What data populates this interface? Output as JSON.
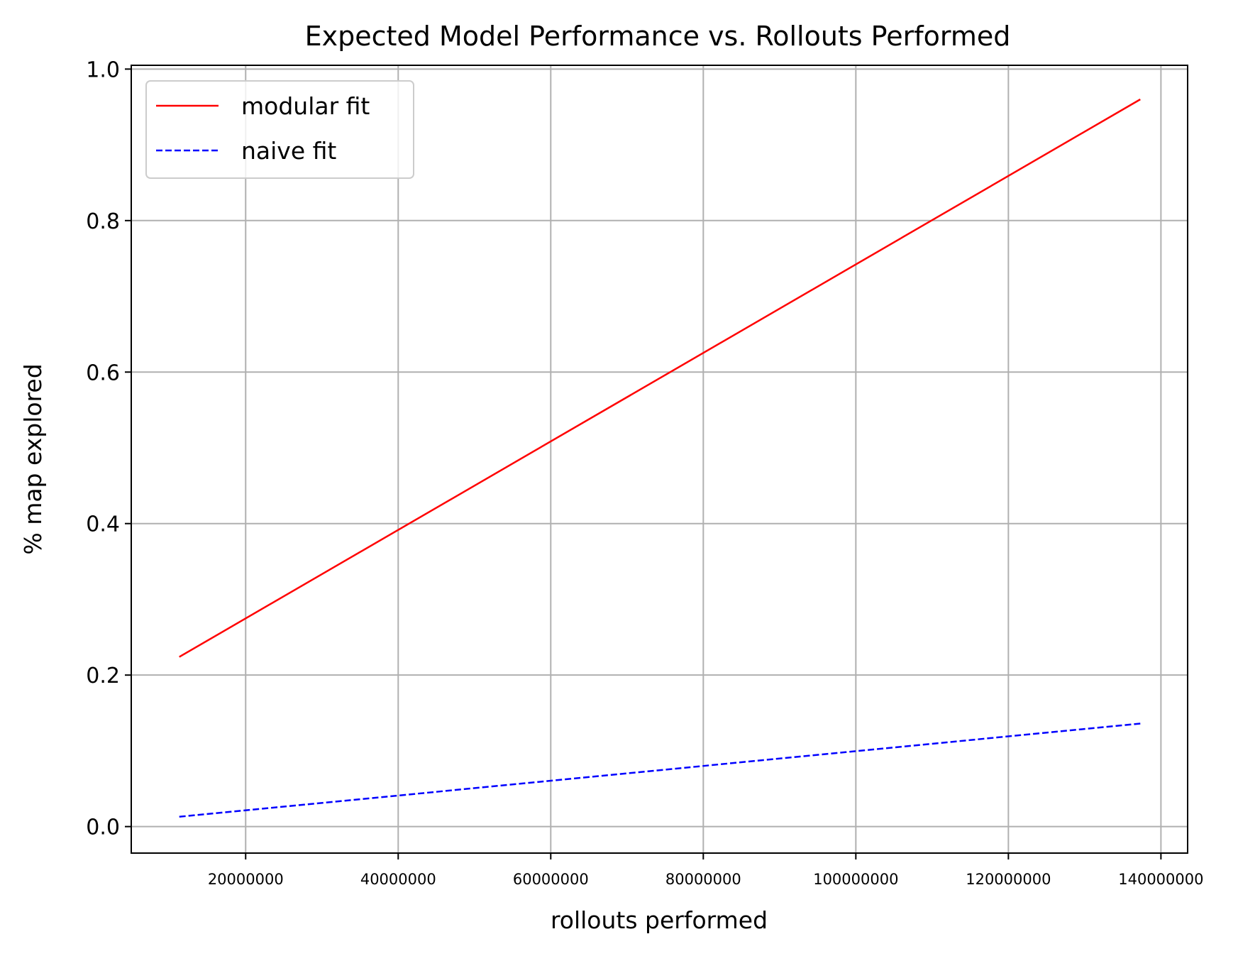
{
  "chart_data": {
    "type": "line",
    "title": "Expected Model Performance vs. Rollouts Performed",
    "xlabel": "rollouts performed",
    "ylabel": "% map explored",
    "xlim": [
      5000000,
      143500000
    ],
    "ylim": [
      -0.035,
      1.005
    ],
    "xticks": [
      20000000,
      40000000,
      60000000,
      80000000,
      100000000,
      120000000,
      140000000
    ],
    "xtick_labels": [
      "20000000",
      "40000000",
      "60000000",
      "80000000",
      "100000000",
      "120000000",
      "140000000"
    ],
    "yticks": [
      0.0,
      0.2,
      0.4,
      0.6,
      0.8,
      1.0
    ],
    "ytick_labels": [
      "0.0",
      "0.2",
      "0.4",
      "0.6",
      "0.8",
      "1.0"
    ],
    "grid": true,
    "legend_position": "top-left",
    "series": [
      {
        "name": "modular fit",
        "color": "#ff0000",
        "style": "solid",
        "x": [
          11300000,
          137300000
        ],
        "y": [
          0.224,
          0.96
        ]
      },
      {
        "name": "naive fit",
        "color": "#0000ff",
        "style": "dashed",
        "x": [
          11300000,
          137300000
        ],
        "y": [
          0.013,
          0.136
        ]
      }
    ]
  }
}
